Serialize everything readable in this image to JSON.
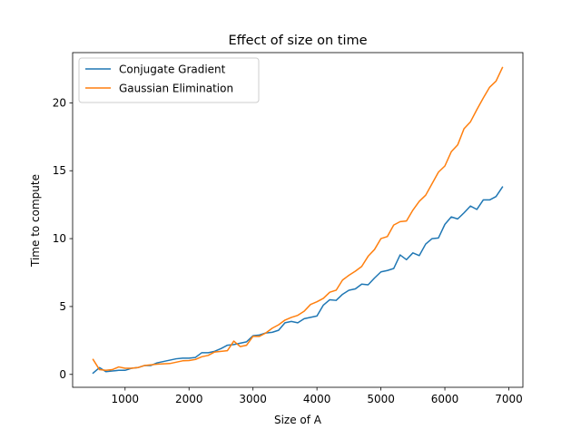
{
  "chart_data": {
    "type": "line",
    "title": "Effect of size on time",
    "xlabel": "Size of A",
    "ylabel": "Time to compute",
    "xlim": [
      180,
      7220
    ],
    "ylim": [
      -0.95,
      23.7
    ],
    "xticks": [
      1000,
      2000,
      3000,
      4000,
      5000,
      6000,
      7000
    ],
    "xtick_labels": [
      "1000",
      "2000",
      "3000",
      "4000",
      "5000",
      "6000",
      "7000"
    ],
    "yticks": [
      0,
      5,
      10,
      15,
      20
    ],
    "ytick_labels": [
      "0",
      "5",
      "10",
      "15",
      "20"
    ],
    "legend_position": "top-left",
    "grid": false,
    "x": [
      500,
      600,
      700,
      800,
      900,
      1000,
      1100,
      1200,
      1300,
      1400,
      1500,
      1600,
      1700,
      1800,
      1900,
      2000,
      2100,
      2200,
      2300,
      2400,
      2500,
      2600,
      2700,
      2800,
      2900,
      3000,
      3100,
      3200,
      3300,
      3400,
      3500,
      3600,
      3700,
      3800,
      3900,
      4000,
      4100,
      4200,
      4300,
      4400,
      4500,
      4600,
      4700,
      4800,
      4900,
      5000,
      5100,
      5200,
      5300,
      5400,
      5500,
      5600,
      5700,
      5800,
      5900,
      6000,
      6100,
      6200,
      6300,
      6400,
      6500,
      6600,
      6700,
      6800,
      6900
    ],
    "series": [
      {
        "name": "Conjugate Gradient",
        "color": "#1f77b4",
        "values": [
          0.1,
          0.5,
          0.2,
          0.25,
          0.3,
          0.3,
          0.45,
          0.5,
          0.65,
          0.65,
          0.85,
          0.95,
          1.05,
          1.15,
          1.2,
          1.2,
          1.25,
          1.6,
          1.6,
          1.7,
          1.9,
          2.15,
          2.2,
          2.3,
          2.4,
          2.85,
          2.9,
          3.05,
          3.1,
          3.25,
          3.8,
          3.9,
          3.8,
          4.1,
          4.2,
          4.3,
          5.1,
          5.5,
          5.45,
          5.9,
          6.2,
          6.3,
          6.65,
          6.6,
          7.1,
          7.55,
          7.65,
          7.8,
          8.8,
          8.45,
          8.95,
          8.75,
          9.6,
          10.0,
          10.05,
          11.05,
          11.6,
          11.45,
          11.9,
          12.4,
          12.15,
          12.85,
          12.85,
          13.1,
          13.8
        ]
      },
      {
        "name": "Gaussian Elimination",
        "color": "#ff7f0e",
        "values": [
          1.1,
          0.35,
          0.3,
          0.35,
          0.55,
          0.45,
          0.45,
          0.5,
          0.65,
          0.7,
          0.75,
          0.78,
          0.8,
          0.9,
          1.0,
          1.02,
          1.1,
          1.3,
          1.4,
          1.65,
          1.7,
          1.75,
          2.45,
          2.05,
          2.15,
          2.8,
          2.8,
          3.05,
          3.4,
          3.65,
          4.0,
          4.2,
          4.35,
          4.65,
          5.15,
          5.35,
          5.6,
          6.05,
          6.2,
          6.95,
          7.3,
          7.6,
          7.95,
          8.7,
          9.2,
          10.0,
          10.15,
          11.0,
          11.25,
          11.3,
          12.1,
          12.75,
          13.2,
          14.05,
          14.9,
          15.35,
          16.4,
          16.9,
          18.1,
          18.6,
          19.5,
          20.35,
          21.15,
          21.6,
          22.6
        ]
      }
    ]
  }
}
